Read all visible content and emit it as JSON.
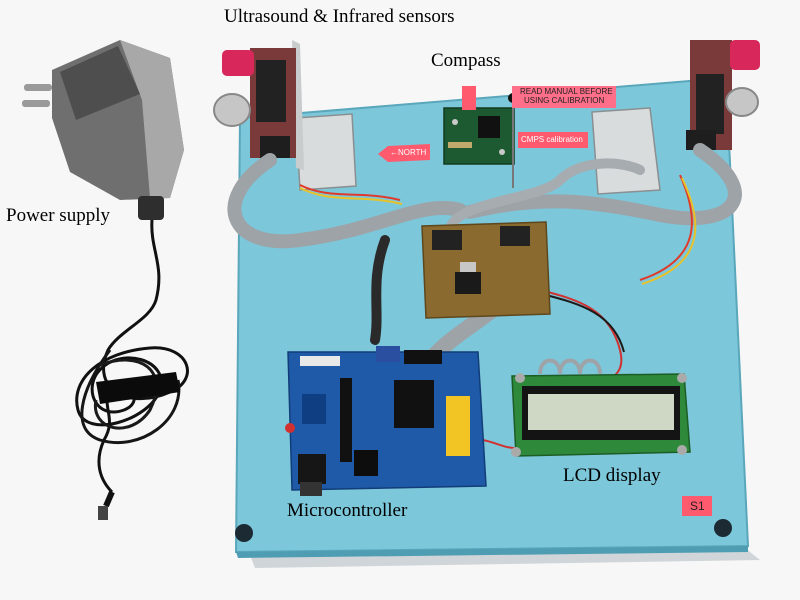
{
  "labels": {
    "sensors": "Ultrasound & Infrared sensors",
    "compass": "Compass",
    "power": "Power supply",
    "lcd": "LCD display",
    "micro": "Microcontroller"
  },
  "board_tags": {
    "read_manual_1": "READ MANUAL BEFORE",
    "read_manual_2": "USING CALIBRATION",
    "north": "←NORTH",
    "cmps": "CMPS calibration",
    "s1": "S1"
  }
}
